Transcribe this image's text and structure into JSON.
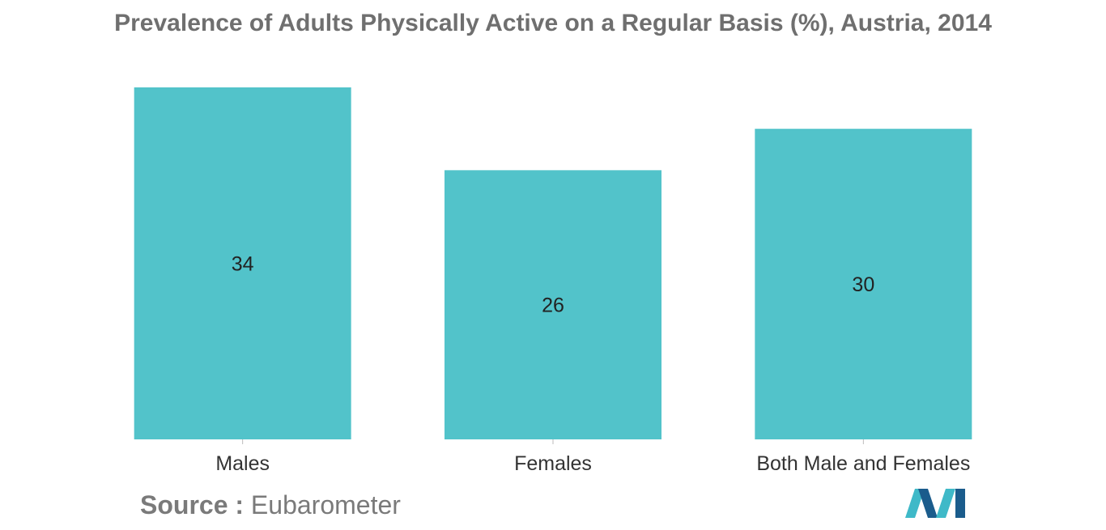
{
  "chart_data": {
    "type": "bar",
    "title": "Prevalence of Adults Physically Active on a Regular Basis (%), Austria, 2014",
    "categories": [
      "Males",
      "Females",
      "Both Male and Females"
    ],
    "values": [
      34,
      26,
      30
    ],
    "xlabel": "",
    "ylabel": "",
    "ylim": [
      0,
      34
    ],
    "grid": false,
    "legend": "none",
    "bar_color": "#52c3ca",
    "label_color": "#222222"
  },
  "source": {
    "label": "Source :",
    "value": "Eubarometer"
  },
  "logo": {
    "icon": "mordor-intelligence-logo-icon",
    "colors": [
      "#1b5c8c",
      "#3fb9c8"
    ]
  }
}
